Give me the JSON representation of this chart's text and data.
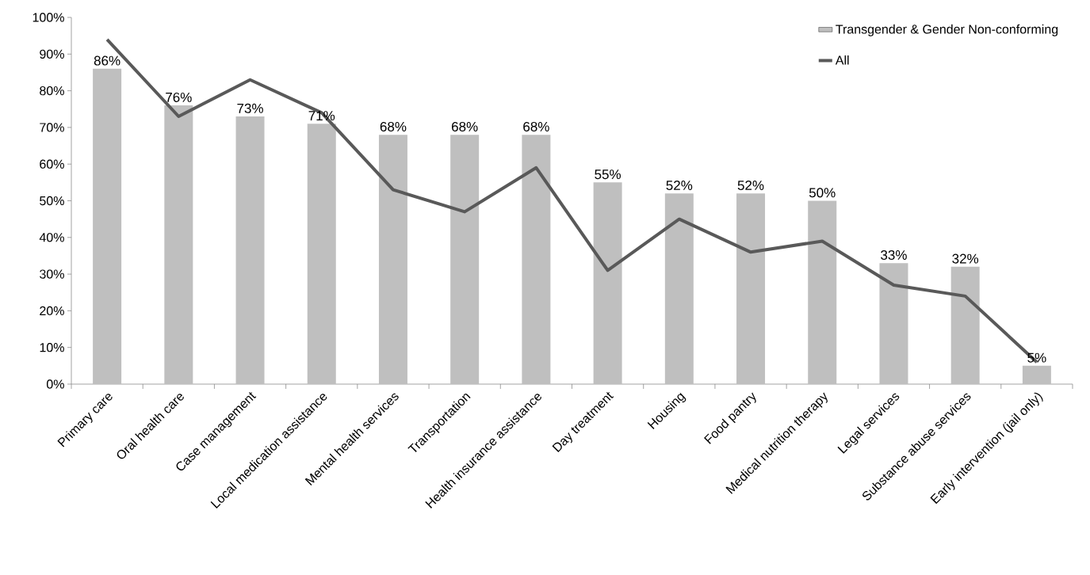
{
  "chart_data": {
    "type": "bar",
    "categories": [
      "Primary care",
      "Oral health care",
      "Case management",
      "Local medication assistance",
      "Mental health services",
      "Transportation",
      "Health insurance assistance",
      "Day treatment",
      "Housing",
      "Food pantry",
      "Medical nutrition therapy",
      "Legal services",
      "Substance abuse services",
      "Early intervention (jail only)"
    ],
    "series": [
      {
        "name": "Transgender & Gender Non-conforming",
        "color": "#bfbfbf",
        "values": [
          86,
          76,
          73,
          71,
          68,
          68,
          68,
          55,
          52,
          52,
          50,
          33,
          32,
          5
        ],
        "value_labels": [
          "86%",
          "76%",
          "73%",
          "71%",
          "68%",
          "68%",
          "68%",
          "55%",
          "52%",
          "52%",
          "50%",
          "33%",
          "32%",
          "5%"
        ]
      },
      {
        "name": "All",
        "type": "line",
        "color": "#595959",
        "values": [
          94,
          73,
          83,
          74,
          53,
          47,
          59,
          31,
          45,
          36,
          39,
          27,
          24,
          6
        ]
      }
    ],
    "ylim": [
      0,
      100
    ],
    "yticks": [
      {
        "value": 0,
        "label": "0%"
      },
      {
        "value": 10,
        "label": "10%"
      },
      {
        "value": 20,
        "label": "20%"
      },
      {
        "value": 30,
        "label": "30%"
      },
      {
        "value": 40,
        "label": "40%"
      },
      {
        "value": 50,
        "label": "50%"
      },
      {
        "value": 60,
        "label": "60%"
      },
      {
        "value": 70,
        "label": "70%"
      },
      {
        "value": 80,
        "label": "80%"
      },
      {
        "value": 90,
        "label": "90%"
      },
      {
        "value": 100,
        "label": "100%"
      }
    ],
    "grid": false,
    "legend": "top right",
    "marker": "none"
  }
}
